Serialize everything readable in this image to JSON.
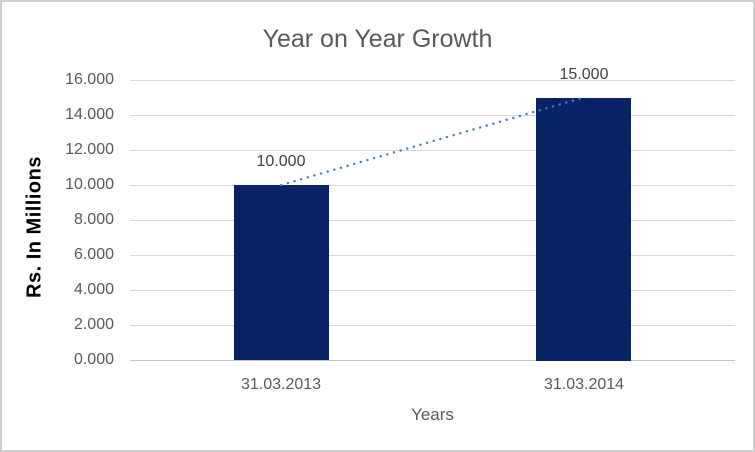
{
  "chart_data": {
    "type": "bar",
    "title": "Year on Year Growth",
    "xlabel": "Years",
    "ylabel": "Rs. In Millions",
    "categories": [
      "31.03.2013",
      "31.03.2014"
    ],
    "values": [
      10.0,
      15.0
    ],
    "data_labels": [
      "10.000",
      "15.000"
    ],
    "ylim": [
      0,
      16
    ],
    "ytick_values": [
      0,
      2,
      4,
      6,
      8,
      10,
      12,
      14,
      16
    ],
    "ytick_labels": [
      "0.000",
      "2.000",
      "4.000",
      "6.000",
      "8.000",
      "10.000",
      "12.000",
      "14.000",
      "16.000"
    ],
    "grid": "horizontal",
    "legend": "none",
    "trendline": {
      "style": "dotted",
      "connects": "bar-tops"
    },
    "colors": {
      "bar": "#072365",
      "trendline": "#4a7cc0",
      "gridline": "#d9d9d9",
      "axis_line": "#c5c5c5",
      "title_text": "#595959",
      "tick_text": "#595959",
      "data_label_text": "#404040",
      "y_axis_title_text": "#000000",
      "background": "#ffffff",
      "border": "#d0d0d0"
    }
  }
}
